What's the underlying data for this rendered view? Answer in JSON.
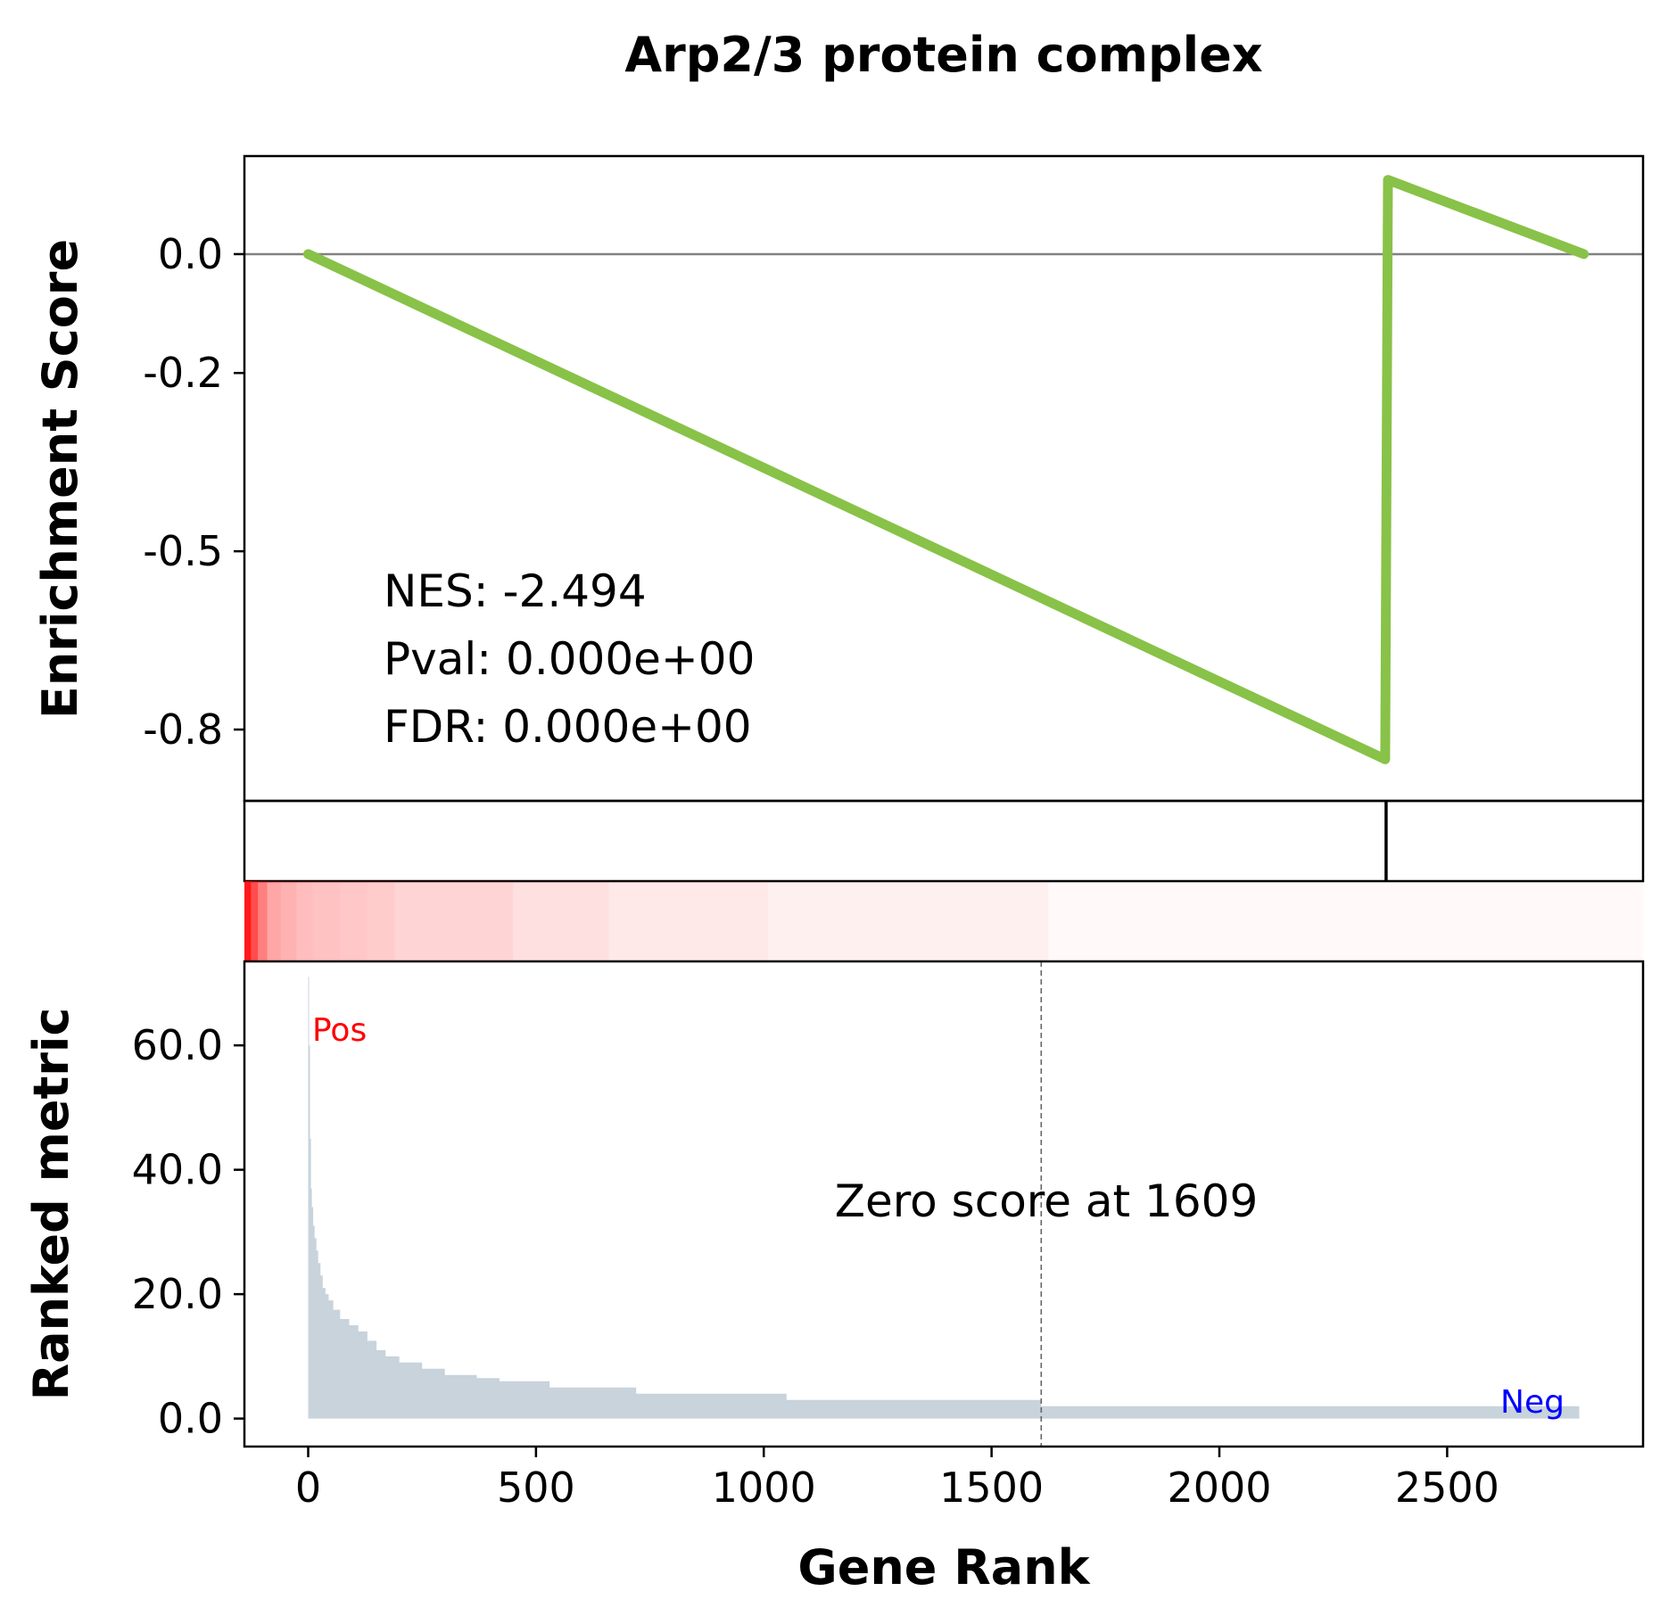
{
  "chart_data": {
    "type": "gsea_enrichment_plot",
    "title": "Arp2/3 protein complex",
    "xlabel": "Gene Rank",
    "xlim": [
      -140,
      2930
    ],
    "xticks": [
      0,
      500,
      1000,
      1500,
      2000,
      2500
    ],
    "xtick_labels": [
      "0",
      "500",
      "1000",
      "1500",
      "2000",
      "2500"
    ],
    "enrichment": {
      "ylabel": "Enrichment Score",
      "ylim": [
        -0.92,
        0.165
      ],
      "yticks": [
        0.0,
        -0.2,
        -0.5,
        -0.8
      ],
      "ytick_labels": [
        "0.0",
        "-0.2",
        "-0.5",
        "-0.8"
      ],
      "line_color": "#88c248",
      "zero_line_color": "#808080",
      "points": [
        {
          "x": 0,
          "y": 0.0
        },
        {
          "x": 2364,
          "y": -0.85
        },
        {
          "x": 2370,
          "y": 0.125
        },
        {
          "x": 2800,
          "y": 0.0
        }
      ],
      "stats": {
        "nes": "NES: -2.494",
        "pval": "Pval: 0.000e+00",
        "fdr": "FDR: 0.000e+00"
      }
    },
    "hits": {
      "positions": [
        2366
      ],
      "color": "#000000"
    },
    "heat_strip": {
      "color": "#ff0000",
      "segments": [
        {
          "x0": -140,
          "x1": -125,
          "opacity": 0.9
        },
        {
          "x0": -125,
          "x1": -110,
          "opacity": 0.7
        },
        {
          "x0": -110,
          "x1": -90,
          "opacity": 0.5
        },
        {
          "x0": -90,
          "x1": -60,
          "opacity": 0.35
        },
        {
          "x0": -60,
          "x1": -25,
          "opacity": 0.3
        },
        {
          "x0": -25,
          "x1": 10,
          "opacity": 0.26
        },
        {
          "x0": 10,
          "x1": 70,
          "opacity": 0.24
        },
        {
          "x0": 70,
          "x1": 130,
          "opacity": 0.22
        },
        {
          "x0": 130,
          "x1": 190,
          "opacity": 0.2
        },
        {
          "x0": 190,
          "x1": 450,
          "opacity": 0.17
        },
        {
          "x0": 450,
          "x1": 660,
          "opacity": 0.12
        },
        {
          "x0": 660,
          "x1": 1010,
          "opacity": 0.09
        },
        {
          "x0": 1010,
          "x1": 1625,
          "opacity": 0.06
        },
        {
          "x0": 1625,
          "x1": 2930,
          "opacity": 0.025
        }
      ]
    },
    "ranked": {
      "ylabel": "Ranked metric",
      "ylim": [
        -4.5,
        73.5
      ],
      "yticks": [
        0.0,
        20.0,
        40.0,
        60.0
      ],
      "ytick_labels": [
        "0.0",
        "20.0",
        "40.0",
        "60.0"
      ],
      "fill_color": "#c8d3dc",
      "steps": [
        [
          0,
          71
        ],
        [
          2,
          60
        ],
        [
          4,
          45
        ],
        [
          6,
          37
        ],
        [
          8,
          34
        ],
        [
          11,
          31
        ],
        [
          14,
          29
        ],
        [
          18,
          27
        ],
        [
          22,
          25
        ],
        [
          27,
          23
        ],
        [
          32,
          21
        ],
        [
          38,
          20
        ],
        [
          45,
          19
        ],
        [
          55,
          17.5
        ],
        [
          70,
          16
        ],
        [
          90,
          15
        ],
        [
          110,
          14
        ],
        [
          130,
          12.5
        ],
        [
          150,
          11
        ],
        [
          170,
          10
        ],
        [
          200,
          9
        ],
        [
          250,
          8
        ],
        [
          300,
          7
        ],
        [
          370,
          6.5
        ],
        [
          420,
          6
        ],
        [
          530,
          5
        ],
        [
          720,
          4
        ],
        [
          1050,
          3
        ],
        [
          1609,
          2
        ],
        [
          2790,
          0
        ]
      ],
      "zero_score_x": 1609,
      "zero_score_label": "Zero score at 1609",
      "pos_label": "Pos",
      "pos_color": "#ff0000",
      "neg_label": "Neg",
      "neg_color": "#0000ff"
    }
  }
}
